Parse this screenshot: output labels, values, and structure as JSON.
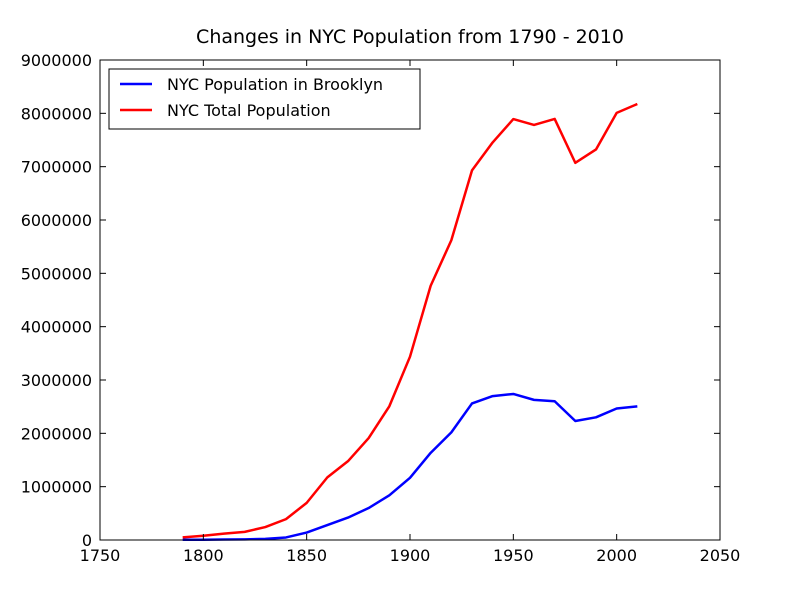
{
  "chart_data": {
    "type": "line",
    "title": "Changes in NYC Population from 1790 - 2010",
    "xlabel": "",
    "ylabel": "",
    "xlim": [
      1750,
      2050
    ],
    "ylim": [
      0,
      9000000
    ],
    "xticks": [
      1750,
      1800,
      1850,
      1900,
      1950,
      2000,
      2050
    ],
    "yticks": [
      0,
      1000000,
      2000000,
      3000000,
      4000000,
      5000000,
      6000000,
      7000000,
      8000000,
      9000000
    ],
    "grid": false,
    "legend_position": "top-left",
    "x": [
      1790,
      1800,
      1810,
      1820,
      1830,
      1840,
      1850,
      1860,
      1870,
      1880,
      1890,
      1900,
      1910,
      1920,
      1930,
      1940,
      1950,
      1960,
      1970,
      1980,
      1990,
      2000,
      2010
    ],
    "series": [
      {
        "name": "NYC Population in Brooklyn",
        "color": "#0000ff",
        "values": [
          4495,
          5740,
          8303,
          11187,
          20535,
          47613,
          138882,
          279122,
          419921,
          599495,
          838547,
          1166582,
          1634351,
          2018356,
          2560401,
          2698285,
          2738175,
          2627319,
          2602012,
          2230936,
          2300664,
          2465326,
          2504700
        ]
      },
      {
        "name": "NYC Total Population",
        "color": "#ff0000",
        "values": [
          49401,
          79216,
          119734,
          152056,
          242278,
          391114,
          696115,
          1174779,
          1478103,
          1911698,
          2507414,
          3437202,
          4766883,
          5620048,
          6930446,
          7454995,
          7891957,
          7781984,
          7894862,
          7071639,
          7322564,
          8008278,
          8175133
        ]
      }
    ]
  }
}
